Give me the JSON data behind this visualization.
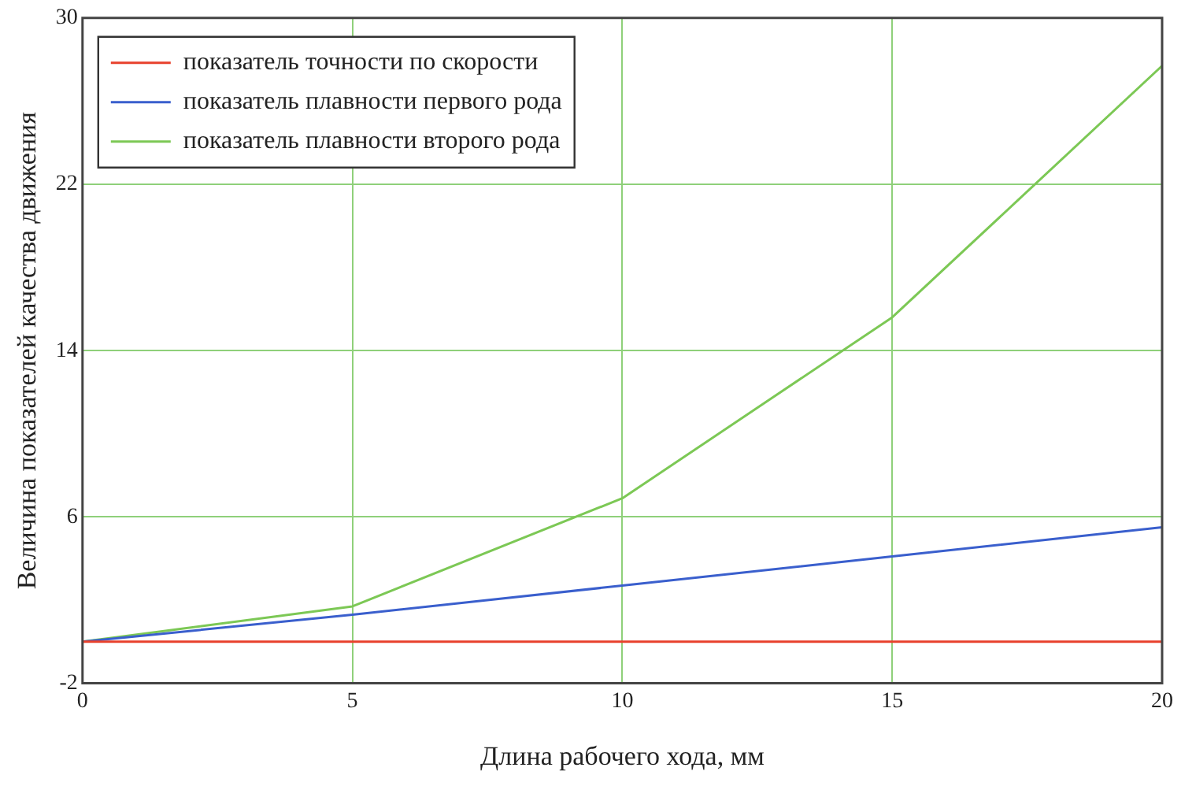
{
  "chart_data": {
    "type": "line",
    "xlabel": "Длина рабочего хода, мм",
    "ylabel": "Величина показателей качества движения",
    "x": [
      0,
      5,
      10,
      15,
      20
    ],
    "series": [
      {
        "name": "показатель точности по скорости",
        "color": "#e8412c",
        "values": [
          0,
          0,
          0,
          0,
          0
        ]
      },
      {
        "name": "показатель плавности первого рода",
        "color": "#3a5fcd",
        "values": [
          0,
          1.3,
          2.7,
          4.1,
          5.5
        ]
      },
      {
        "name": "показатель плавности второго рода",
        "color": "#7cc855",
        "values": [
          0,
          1.7,
          6.9,
          15.6,
          27.7
        ]
      }
    ],
    "xlim": [
      0,
      20
    ],
    "xticks": [
      0,
      5,
      10,
      15,
      20
    ],
    "ylim": [
      -2,
      30
    ],
    "yticks": [
      -2,
      6,
      14,
      22,
      30
    ],
    "grid": true,
    "legend": "top left",
    "marker": "none",
    "line_style": "solid"
  }
}
